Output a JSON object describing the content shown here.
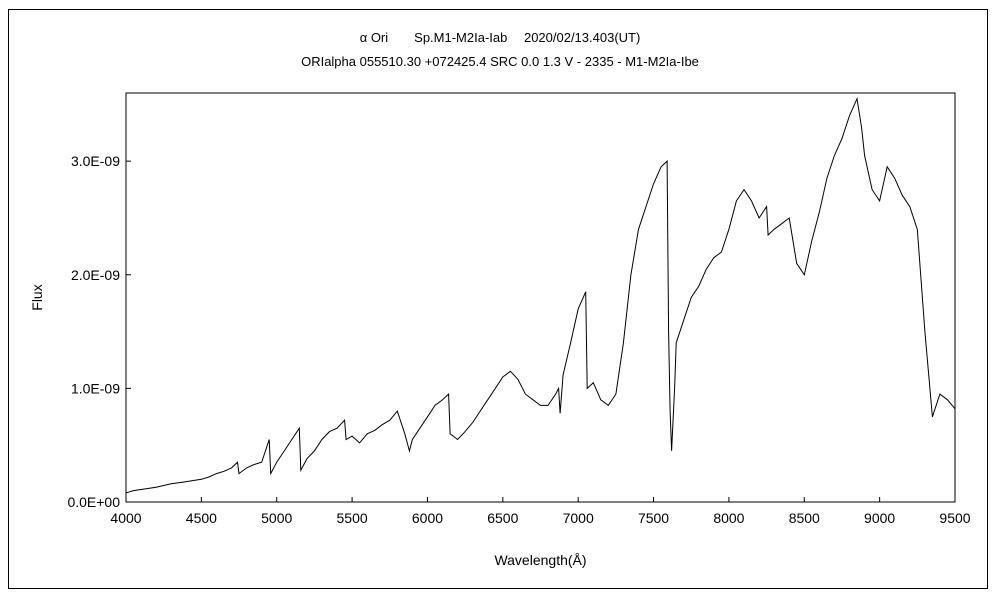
{
  "chart_data": {
    "type": "line",
    "title": "α Ori　　Sp.M1-M2Ia-Iab　 2020/02/13.403(UT)",
    "subtitle": "ORIalpha 055510.30 +072425.4 SRC 0.0 1.3 V - 2335 - M1-M2Ia-Ibe",
    "xlabel": "Wavelength(Å)",
    "ylabel": "Flux",
    "xlim": [
      4000,
      9500
    ],
    "ylim": [
      0,
      3.6e-09
    ],
    "x_ticks": [
      4000,
      4500,
      5000,
      5500,
      6000,
      6500,
      7000,
      7500,
      8000,
      8500,
      9000,
      9500
    ],
    "y_ticks": [
      0,
      1e-09,
      2e-09,
      3e-09
    ],
    "x_tick_labels": [
      "4000",
      "4500",
      "5000",
      "5500",
      "6000",
      "6500",
      "7000",
      "7500",
      "8000",
      "8500",
      "9000",
      "9500"
    ],
    "y_tick_labels": [
      "0.0E+00",
      "1.0E-09",
      "2.0E-09",
      "3.0E-09"
    ],
    "grid": false,
    "line_color": "#000000",
    "series": [
      {
        "x": [
          4000,
          4050,
          4100,
          4200,
          4300,
          4350,
          4400,
          4500,
          4550,
          4600,
          4650,
          4700,
          4740,
          4750,
          4800,
          4850,
          4900,
          4950,
          4960,
          5000,
          5050,
          5100,
          5150,
          5160,
          5200,
          5250,
          5300,
          5350,
          5400,
          5450,
          5460,
          5500,
          5550,
          5600,
          5650,
          5700,
          5750,
          5800,
          5850,
          5880,
          5900,
          5950,
          6000,
          6050,
          6100,
          6140,
          6150,
          6200,
          6250,
          6300,
          6350,
          6400,
          6450,
          6500,
          6550,
          6600,
          6650,
          6700,
          6750,
          6800,
          6850,
          6870,
          6880,
          6900,
          6950,
          7000,
          7050,
          7060,
          7100,
          7150,
          7200,
          7250,
          7300,
          7350,
          7400,
          7450,
          7500,
          7550,
          7590,
          7600,
          7610,
          7620,
          7640,
          7650,
          7700,
          7750,
          7800,
          7850,
          7900,
          7950,
          8000,
          8050,
          8100,
          8150,
          8200,
          8250,
          8260,
          8300,
          8350,
          8400,
          8450,
          8500,
          8550,
          8600,
          8650,
          8700,
          8750,
          8800,
          8850,
          8880,
          8900,
          8950,
          9000,
          9050,
          9100,
          9150,
          9200,
          9250,
          9300,
          9350,
          9400,
          9450,
          9500
        ],
        "y": [
          8e-11,
          1e-10,
          1.1e-10,
          1.3e-10,
          1.6e-10,
          1.7e-10,
          1.8e-10,
          2e-10,
          2.2e-10,
          2.5e-10,
          2.7e-10,
          3e-10,
          3.5e-10,
          2.5e-10,
          3e-10,
          3.3e-10,
          3.5e-10,
          5.5e-10,
          2.5e-10,
          3.5e-10,
          4.5e-10,
          5.5e-10,
          6.5e-10,
          2.8e-10,
          3.8e-10,
          4.5e-10,
          5.5e-10,
          6.2e-10,
          6.5e-10,
          7.2e-10,
          5.5e-10,
          5.8e-10,
          5.2e-10,
          6e-10,
          6.3e-10,
          6.8e-10,
          7.2e-10,
          8e-10,
          6e-10,
          4.5e-10,
          5.5e-10,
          6.5e-10,
          7.5e-10,
          8.5e-10,
          9e-10,
          9.5e-10,
          6e-10,
          5.5e-10,
          6.2e-10,
          7e-10,
          8e-10,
          9e-10,
          1e-09,
          1.1e-09,
          1.15e-09,
          1.08e-09,
          9.5e-10,
          9e-10,
          8.5e-10,
          8.5e-10,
          9.5e-10,
          1e-09,
          7.8e-10,
          1.12e-09,
          1.4e-09,
          1.7e-09,
          1.85e-09,
          1e-09,
          1.05e-09,
          9e-10,
          8.5e-10,
          9.5e-10,
          1.4e-09,
          2e-09,
          2.4e-09,
          2.6e-09,
          2.8e-09,
          2.95e-09,
          3e-09,
          1.5e-09,
          8e-10,
          4.5e-10,
          1e-09,
          1.4e-09,
          1.6e-09,
          1.8e-09,
          1.9e-09,
          2.05e-09,
          2.15e-09,
          2.2e-09,
          2.4e-09,
          2.65e-09,
          2.75e-09,
          2.65e-09,
          2.5e-09,
          2.6e-09,
          2.35e-09,
          2.4e-09,
          2.45e-09,
          2.5e-09,
          2.1e-09,
          2e-09,
          2.3e-09,
          2.55e-09,
          2.85e-09,
          3.05e-09,
          3.2e-09,
          3.4e-09,
          3.55e-09,
          3.3e-09,
          3.05e-09,
          2.75e-09,
          2.65e-09,
          2.95e-09,
          2.85e-09,
          2.7e-09,
          2.6e-09,
          2.4e-09,
          1.5e-09,
          7.5e-10,
          9.5e-10,
          9e-10,
          8.2e-10
        ]
      }
    ]
  }
}
